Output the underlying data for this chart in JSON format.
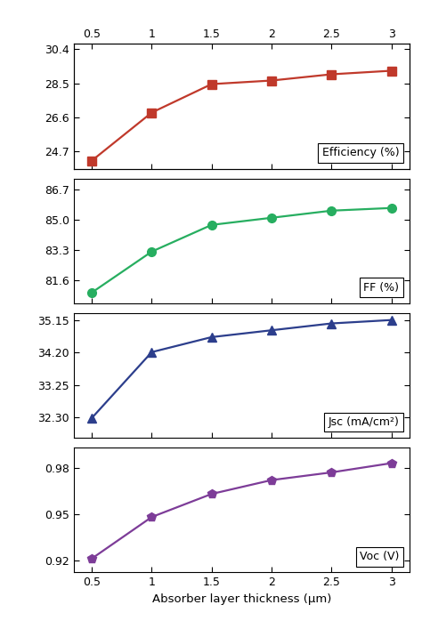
{
  "x": [
    0.5,
    1.0,
    1.5,
    2.0,
    2.5,
    3.0
  ],
  "efficiency": [
    24.15,
    26.85,
    28.45,
    28.65,
    29.0,
    29.2
  ],
  "ff": [
    80.9,
    83.2,
    84.7,
    85.1,
    85.5,
    85.65
  ],
  "jsc": [
    32.28,
    34.21,
    34.65,
    34.85,
    35.05,
    35.15
  ],
  "voc": [
    0.921,
    0.948,
    0.963,
    0.972,
    0.977,
    0.983
  ],
  "eff_color": "#C0392B",
  "ff_color": "#27AE60",
  "jsc_color": "#2C3E8C",
  "voc_color": "#7D3C98",
  "xlim": [
    0.35,
    3.15
  ],
  "eff_ylim": [
    23.7,
    30.7
  ],
  "ff_ylim": [
    80.3,
    87.3
  ],
  "jsc_ylim": [
    31.7,
    35.35
  ],
  "voc_ylim": [
    0.912,
    0.993
  ],
  "eff_yticks": [
    24.7,
    26.6,
    28.5,
    30.4
  ],
  "ff_yticks": [
    81.6,
    83.3,
    85.0,
    86.7
  ],
  "jsc_yticks": [
    32.3,
    33.25,
    34.2,
    35.15
  ],
  "voc_yticks": [
    0.92,
    0.95,
    0.98
  ],
  "xlabel": "Absorber layer thickness (μm)",
  "eff_label": "Efficiency (%)",
  "ff_label": "FF (%)",
  "jsc_label": "Jsc (mA/cm²)",
  "voc_label": "Voc (V)",
  "xticks": [
    0.5,
    1.0,
    1.5,
    2.0,
    2.5,
    3.0
  ],
  "tick_fontsize": 9,
  "label_fontsize": 9.5,
  "legend_fontsize": 9
}
